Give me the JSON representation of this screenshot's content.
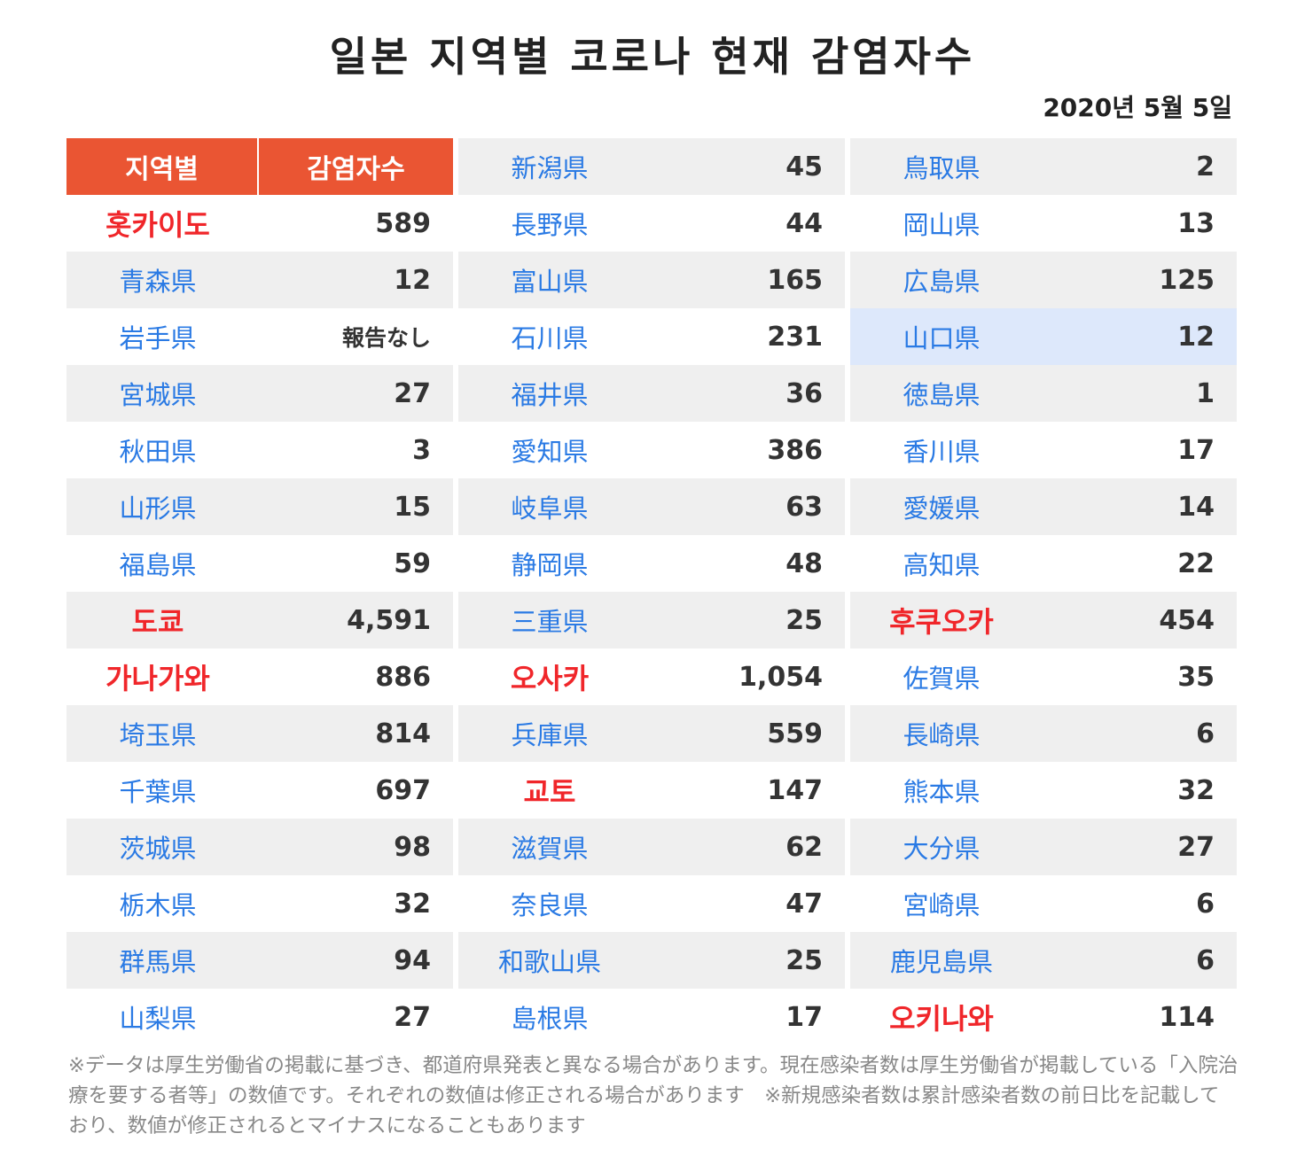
{
  "title": "일본 지역별 코로나 현재 감염자수",
  "date": "2020년 5월 5일",
  "chart_data": {
    "type": "table",
    "columns": [
      "지역별",
      "감염자수"
    ],
    "rows": [
      {
        "region": "홋카이도",
        "count": "589",
        "emphasis": true
      },
      {
        "region": "青森県",
        "count": "12"
      },
      {
        "region": "岩手県",
        "count": "報告なし"
      },
      {
        "region": "宮城県",
        "count": "27"
      },
      {
        "region": "秋田県",
        "count": "3"
      },
      {
        "region": "山形県",
        "count": "15"
      },
      {
        "region": "福島県",
        "count": "59"
      },
      {
        "region": "도쿄",
        "count": "4,591",
        "emphasis": true
      },
      {
        "region": "가나가와",
        "count": "886",
        "emphasis": true
      },
      {
        "region": "埼玉県",
        "count": "814"
      },
      {
        "region": "千葉県",
        "count": "697"
      },
      {
        "region": "茨城県",
        "count": "98"
      },
      {
        "region": "栃木県",
        "count": "32"
      },
      {
        "region": "群馬県",
        "count": "94"
      },
      {
        "region": "山梨県",
        "count": "27"
      },
      {
        "region": "新潟県",
        "count": "45"
      },
      {
        "region": "長野県",
        "count": "44"
      },
      {
        "region": "富山県",
        "count": "165"
      },
      {
        "region": "石川県",
        "count": "231"
      },
      {
        "region": "福井県",
        "count": "36"
      },
      {
        "region": "愛知県",
        "count": "386"
      },
      {
        "region": "岐阜県",
        "count": "63"
      },
      {
        "region": "静岡県",
        "count": "48"
      },
      {
        "region": "三重県",
        "count": "25"
      },
      {
        "region": "오사카",
        "count": "1,054",
        "emphasis": true
      },
      {
        "region": "兵庫県",
        "count": "559"
      },
      {
        "region": "교토",
        "count": "147",
        "emphasis": true
      },
      {
        "region": "滋賀県",
        "count": "62"
      },
      {
        "region": "奈良県",
        "count": "47"
      },
      {
        "region": "和歌山県",
        "count": "25"
      },
      {
        "region": "島根県",
        "count": "17"
      },
      {
        "region": "鳥取県",
        "count": "2"
      },
      {
        "region": "岡山県",
        "count": "13"
      },
      {
        "region": "広島県",
        "count": "125"
      },
      {
        "region": "山口県",
        "count": "12",
        "highlighted": true
      },
      {
        "region": "徳島県",
        "count": "1"
      },
      {
        "region": "香川県",
        "count": "17"
      },
      {
        "region": "愛媛県",
        "count": "14"
      },
      {
        "region": "高知県",
        "count": "22"
      },
      {
        "region": "후쿠오카",
        "count": "454",
        "emphasis": true
      },
      {
        "region": "佐賀県",
        "count": "35"
      },
      {
        "region": "長崎県",
        "count": "6"
      },
      {
        "region": "熊本県",
        "count": "32"
      },
      {
        "region": "大分県",
        "count": "27"
      },
      {
        "region": "宮崎県",
        "count": "6"
      },
      {
        "region": "鹿児島県",
        "count": "6"
      },
      {
        "region": "오키나와",
        "count": "114",
        "emphasis": true
      }
    ]
  },
  "colors": {
    "header_bg": "#ea5533",
    "region_text": "#2a7ae4",
    "emphasis_text": "#f0262a",
    "shade_bg": "#efefef",
    "highlight_bg": "#dde8fb"
  },
  "footnote": "※データは厚生労働省の掲載に基づき、都道府県発表と異なる場合があります。現在感染者数は厚生労働省が掲載している「入院治療を要する者等」の数値です。それぞれの数値は修正される場合があります　※新規感染者数は累計感染者数の前日比を記載しており、数値が修正されるとマイナスになることもあります"
}
